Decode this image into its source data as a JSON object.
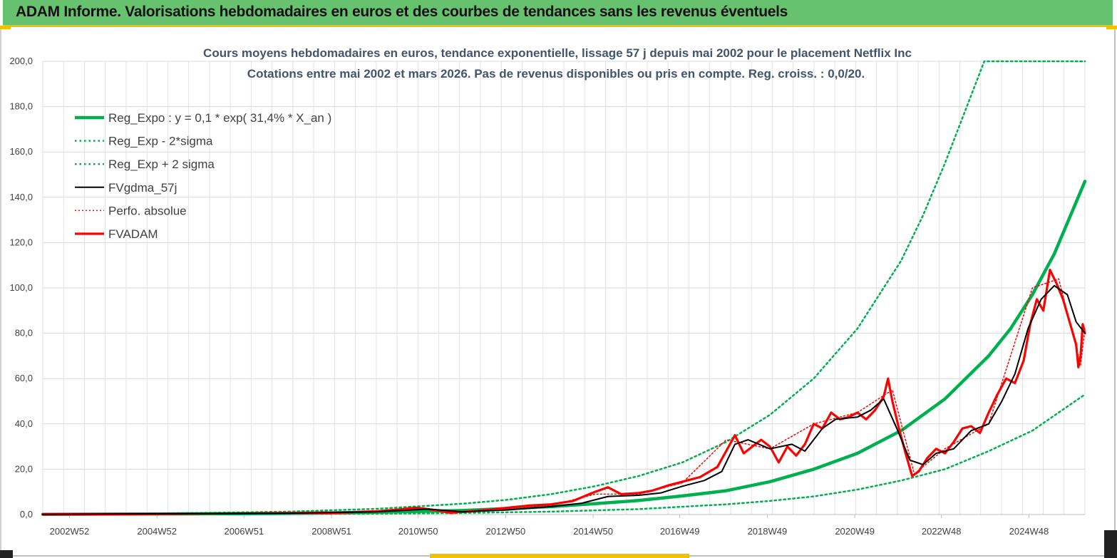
{
  "header": {
    "title": "ADAM Informe. Valorisations hebdomadaires en euros et des courbes de tendances sans les revenus éventuels"
  },
  "colors": {
    "header_bg": "#66c26e",
    "accent_yellow": "#f2c200",
    "reg_expo": "#00b050",
    "sigma_bands": "#00b050",
    "fvgdma": "#000000",
    "perfo": "#ff0000",
    "fvadam": "#ff0000",
    "title_text": "#44546a"
  },
  "chart_data": {
    "type": "line",
    "title_line1": "Cours moyens  hebdomadaires en euros, tendance exponentielle, lissage 57 j depuis mai 2002 pour le placement Netflix Inc",
    "title_line2": "Cotations entre mai 2002 et mars 2026.  Pas de revenus disponibles ou pris en compte. Reg. croiss. : 0,0/20.",
    "xlabel": "",
    "ylabel": "",
    "ylim": [
      0,
      200
    ],
    "xlim": [
      2002.38,
      2026.2
    ],
    "grid": true,
    "legend_position": "top-left",
    "y_ticks": [
      "0,0",
      "20,0",
      "40,0",
      "60,0",
      "80,0",
      "100,0",
      "120,0",
      "140,0",
      "160,0",
      "180,0",
      "200,0"
    ],
    "y_tick_values": [
      0,
      20,
      40,
      60,
      80,
      100,
      120,
      140,
      160,
      180,
      200
    ],
    "x_ticks": [
      {
        "label": "2002W52",
        "x": 2002.99
      },
      {
        "label": "2004W52",
        "x": 2004.99
      },
      {
        "label": "2006W51",
        "x": 2006.98
      },
      {
        "label": "2008W51",
        "x": 2008.98
      },
      {
        "label": "2010W50",
        "x": 2010.96
      },
      {
        "label": "2012W50",
        "x": 2012.96
      },
      {
        "label": "2014W50",
        "x": 2014.96
      },
      {
        "label": "2016W49",
        "x": 2016.94
      },
      {
        "label": "2018W49",
        "x": 2018.94
      },
      {
        "label": "2020W49",
        "x": 2020.94
      },
      {
        "label": "2022W48",
        "x": 2022.92
      },
      {
        "label": "2024W48",
        "x": 2024.92
      }
    ],
    "legend": [
      {
        "name": "Reg_Expo : y = 0,1 * exp( 31,4% *  X_an )",
        "style": "thick-solid",
        "color": "#00b050"
      },
      {
        "name": "Reg_Exp - 2*sigma",
        "style": "dotted",
        "color": "#00b050"
      },
      {
        "name": "Reg_Exp + 2 sigma",
        "style": "dotted",
        "color": "#00b050"
      },
      {
        "name": "FVgdma_57j",
        "style": "solid",
        "color": "#000000"
      },
      {
        "name": "Perfo. absolue",
        "style": "dotted",
        "color": "#ff0000"
      },
      {
        "name": "FVADAM",
        "style": "thick-solid",
        "color": "#ff0000"
      }
    ],
    "series": [
      {
        "name": "Reg_Expo : y = 0,1 * exp( 31,4% *  X_an )",
        "x": [
          2002.38,
          2004,
          2006,
          2008,
          2010,
          2012,
          2014,
          2015,
          2016,
          2017,
          2018,
          2019,
          2020,
          2021,
          2022,
          2023,
          2024,
          2024.5,
          2025,
          2025.5,
          2026.2
        ],
        "y": [
          0.1,
          0.2,
          0.3,
          0.5,
          1.0,
          1.8,
          3.5,
          4.8,
          6.2,
          8.2,
          10.5,
          14.5,
          20.0,
          27.0,
          37.0,
          51.0,
          70.0,
          82.0,
          97.0,
          115.0,
          147.0
        ]
      },
      {
        "name": "Reg_Exp - 2*sigma",
        "x": [
          2002.38,
          2006,
          2008,
          2010,
          2012,
          2014,
          2016,
          2018,
          2019,
          2020,
          2021,
          2022,
          2023,
          2024,
          2025,
          2026.2
        ],
        "y": [
          0.0,
          0.1,
          0.2,
          0.4,
          0.7,
          1.3,
          2.4,
          4.5,
          6.0,
          8.0,
          11.0,
          15.0,
          20.0,
          28.0,
          37.0,
          53.0
        ]
      },
      {
        "name": "Reg_Exp + 2 sigma",
        "x": [
          2002.38,
          2004,
          2006,
          2008,
          2010,
          2012,
          2013,
          2014,
          2015,
          2016,
          2017,
          2018,
          2019,
          2020,
          2021,
          2022,
          2022.5,
          2023,
          2023.5,
          2023.9,
          2024,
          2026.2
        ],
        "y": [
          0.2,
          0.4,
          0.7,
          1.3,
          2.5,
          4.8,
          6.5,
          9.0,
          12.5,
          17.0,
          23.0,
          32.0,
          44.0,
          60.0,
          82.0,
          112.0,
          132.0,
          155.0,
          180.0,
          200.0,
          200.0,
          200.0
        ]
      },
      {
        "name": "FVgdma_57j",
        "x": [
          2002.38,
          2008,
          2010,
          2010.8,
          2011.2,
          2012,
          2013,
          2014,
          2014.7,
          2015.3,
          2016,
          2016.5,
          2017,
          2017.5,
          2017.9,
          2018.2,
          2018.5,
          2019,
          2019.5,
          2019.8,
          2020.2,
          2020.5,
          2021,
          2021.3,
          2021.6,
          2021.9,
          2022.2,
          2022.5,
          2022.8,
          2023.2,
          2023.6,
          2024,
          2024.3,
          2024.6,
          2024.9,
          2025.2,
          2025.5,
          2025.8,
          2026.0,
          2026.2
        ],
        "y": [
          0.1,
          0.6,
          1.2,
          2.0,
          2.4,
          1.2,
          2.0,
          3.5,
          5.0,
          8.0,
          8.5,
          9.5,
          12.5,
          15.0,
          19.0,
          31.0,
          33.0,
          29.0,
          31.0,
          28.0,
          38.0,
          42.0,
          43.0,
          46.0,
          51.0,
          38.0,
          24.0,
          22.0,
          27.0,
          29.0,
          37.0,
          40.0,
          50.0,
          62.0,
          82.0,
          95.0,
          101.0,
          97.0,
          85.0,
          80.0
        ]
      },
      {
        "name": "Perfo. absolue",
        "x": [
          2002.38,
          2008,
          2010,
          2010.8,
          2011.3,
          2012,
          2013,
          2014,
          2015,
          2016,
          2017,
          2018,
          2019,
          2020,
          2021,
          2021.8,
          2022.3,
          2023,
          2024,
          2025,
          2025.6,
          2026.1,
          2026.2
        ],
        "y": [
          0.1,
          0.6,
          1.4,
          2.6,
          2.3,
          1.0,
          2.3,
          4.0,
          9.0,
          9.0,
          14.0,
          33.0,
          29.0,
          40.0,
          45.0,
          55.0,
          18.0,
          29.0,
          40.0,
          100.0,
          104.0,
          66.0,
          82.0
        ]
      },
      {
        "name": "FVADAM",
        "x": [
          2002.38,
          2004,
          2006,
          2008,
          2009,
          2010,
          2010.5,
          2010.9,
          2011.1,
          2011.4,
          2011.7,
          2012,
          2012.5,
          2013,
          2013.5,
          2014,
          2014.5,
          2015,
          2015.3,
          2015.6,
          2016,
          2016.3,
          2016.7,
          2017,
          2017.4,
          2017.8,
          2018.0,
          2018.2,
          2018.4,
          2018.6,
          2018.8,
          2019.0,
          2019.2,
          2019.4,
          2019.6,
          2019.8,
          2020.0,
          2020.2,
          2020.4,
          2020.6,
          2020.8,
          2021.0,
          2021.2,
          2021.4,
          2021.6,
          2021.7,
          2021.8,
          2021.95,
          2022.1,
          2022.25,
          2022.4,
          2022.6,
          2022.8,
          2023.0,
          2023.2,
          2023.4,
          2023.6,
          2023.8,
          2024.0,
          2024.2,
          2024.4,
          2024.6,
          2024.8,
          2024.95,
          2025.1,
          2025.25,
          2025.4,
          2025.55,
          2025.7,
          2025.85,
          2026.0,
          2026.05,
          2026.1,
          2026.15,
          2026.2
        ],
        "y": [
          0.1,
          0.2,
          0.4,
          0.6,
          0.8,
          1.4,
          2.2,
          3.0,
          2.6,
          1.8,
          0.8,
          1.2,
          2.0,
          3.0,
          4.0,
          4.5,
          6.0,
          10.0,
          12.0,
          9.0,
          9.5,
          10.5,
          13.0,
          14.5,
          16.5,
          21.0,
          28.0,
          35.0,
          27.0,
          30.0,
          33.0,
          30.0,
          23.0,
          30.0,
          26.0,
          31.0,
          40.0,
          38.0,
          45.0,
          42.0,
          43.0,
          45.0,
          42.0,
          46.0,
          52.0,
          60.0,
          50.0,
          38.0,
          27.0,
          17.0,
          19.0,
          25.0,
          29.0,
          27.0,
          32.0,
          38.0,
          39.0,
          36.0,
          45.0,
          53.0,
          60.0,
          58.0,
          68.0,
          84.0,
          95.0,
          90.0,
          108.0,
          102.0,
          95.0,
          85.0,
          75.0,
          65.0,
          70.0,
          84.0,
          80.0
        ]
      }
    ]
  }
}
